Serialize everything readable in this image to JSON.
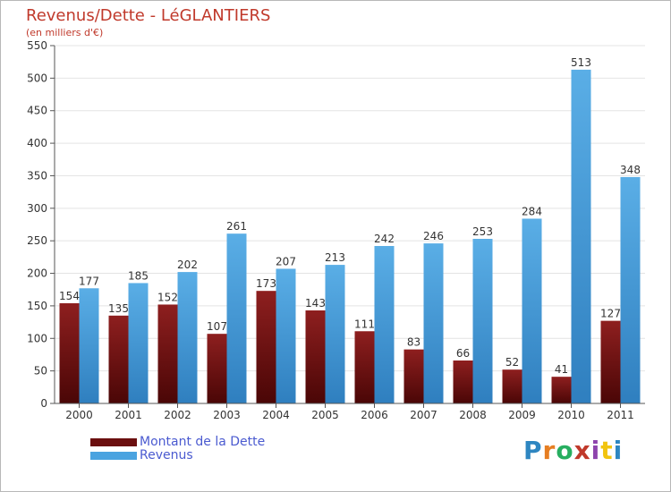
{
  "title": "Revenus/Dette - LéGLANTIERS",
  "subtitle": "(en milliers d'€)",
  "legend": [
    {
      "label": "Montant de la Dette",
      "color": "#7a1414"
    },
    {
      "label": "Revenus",
      "color": "#4aa3e0"
    }
  ],
  "logo": {
    "text": "Proxiti",
    "letters": [
      {
        "ch": "P",
        "color": "#2e86c1"
      },
      {
        "ch": "r",
        "color": "#e67e22"
      },
      {
        "ch": "o",
        "color": "#27ae60"
      },
      {
        "ch": "x",
        "color": "#c0392b"
      },
      {
        "ch": "i",
        "color": "#8e44ad"
      },
      {
        "ch": "t",
        "color": "#f1c40f"
      },
      {
        "ch": "i",
        "color": "#2e86c1"
      }
    ]
  },
  "chart_data": {
    "type": "bar",
    "categories": [
      "2000",
      "2001",
      "2002",
      "2003",
      "2004",
      "2005",
      "2006",
      "2007",
      "2008",
      "2009",
      "2010",
      "2011"
    ],
    "series": [
      {
        "name": "Montant de la Dette",
        "values": [
          154,
          135,
          152,
          107,
          173,
          143,
          111,
          83,
          66,
          52,
          41,
          127
        ],
        "color": "#7a1414"
      },
      {
        "name": "Revenus",
        "values": [
          177,
          185,
          202,
          261,
          207,
          213,
          242,
          246,
          253,
          284,
          513,
          348
        ],
        "color": "#4aa3e0"
      }
    ],
    "ylim": [
      0,
      550
    ],
    "yticks": [
      0,
      50,
      100,
      150,
      200,
      250,
      300,
      350,
      400,
      450,
      500,
      550
    ],
    "grid": true,
    "legend_position": "bottom-left"
  }
}
